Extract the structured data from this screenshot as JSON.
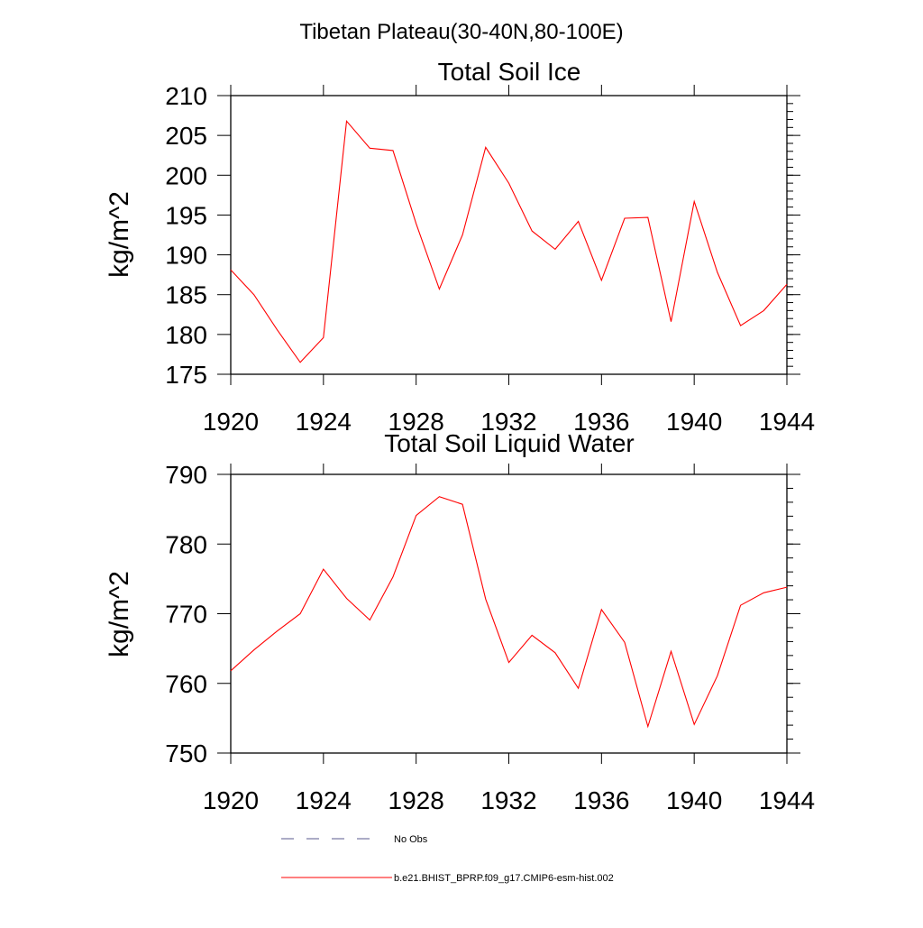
{
  "figure_title": "Tibetan Plateau(30-40N,80-100E)",
  "chart_data": [
    {
      "type": "line",
      "title": "Total Soil Ice",
      "xlabel": "",
      "ylabel": "kg/m^2",
      "xlim": [
        1920,
        1944
      ],
      "ylim": [
        175,
        210
      ],
      "xticks": [
        1920,
        1924,
        1928,
        1932,
        1936,
        1940,
        1944
      ],
      "yticks": [
        175,
        180,
        185,
        190,
        195,
        200,
        205,
        210
      ],
      "series": [
        {
          "name": "b.e21.BHIST_BPRP.f09_g17.CMIP6-esm-hist.002",
          "color": "#ff0000",
          "x": [
            1920,
            1921,
            1922,
            1923,
            1924,
            1925,
            1926,
            1927,
            1928,
            1929,
            1930,
            1931,
            1932,
            1933,
            1934,
            1935,
            1936,
            1937,
            1938,
            1939,
            1940,
            1941,
            1942,
            1943,
            1944
          ],
          "values": [
            188.1,
            185.0,
            180.6,
            176.5,
            179.6,
            206.8,
            203.4,
            203.1,
            193.9,
            185.7,
            192.5,
            203.5,
            199.0,
            193.0,
            190.7,
            194.2,
            186.8,
            194.6,
            194.7,
            181.6,
            196.7,
            187.8,
            181.1,
            183.0,
            186.3
          ]
        }
      ]
    },
    {
      "type": "line",
      "title": "Total Soil Liquid Water",
      "xlabel": "",
      "ylabel": "kg/m^2",
      "xlim": [
        1920,
        1944
      ],
      "ylim": [
        750,
        790
      ],
      "xticks": [
        1920,
        1924,
        1928,
        1932,
        1936,
        1940,
        1944
      ],
      "yticks": [
        750,
        760,
        770,
        780,
        790
      ],
      "series": [
        {
          "name": "b.e21.BHIST_BPRP.f09_g17.CMIP6-esm-hist.002",
          "color": "#ff0000",
          "x": [
            1920,
            1921,
            1922,
            1923,
            1924,
            1925,
            1926,
            1927,
            1928,
            1929,
            1930,
            1931,
            1932,
            1933,
            1934,
            1935,
            1936,
            1937,
            1938,
            1939,
            1940,
            1941,
            1942,
            1943,
            1944
          ],
          "values": [
            761.8,
            764.8,
            767.5,
            770.0,
            776.4,
            772.2,
            769.1,
            775.3,
            784.1,
            786.8,
            785.7,
            772.1,
            763.0,
            766.9,
            764.4,
            759.3,
            770.6,
            765.9,
            753.8,
            764.6,
            754.1,
            761.1,
            771.2,
            773.0,
            773.8
          ]
        }
      ]
    }
  ],
  "legend": [
    {
      "label": "No Obs",
      "style": "dashed",
      "color": "#5a5a8c"
    },
    {
      "label": "b.e21.BHIST_BPRP.f09_g17.CMIP6-esm-hist.002",
      "style": "solid",
      "color": "#ff0000"
    }
  ]
}
